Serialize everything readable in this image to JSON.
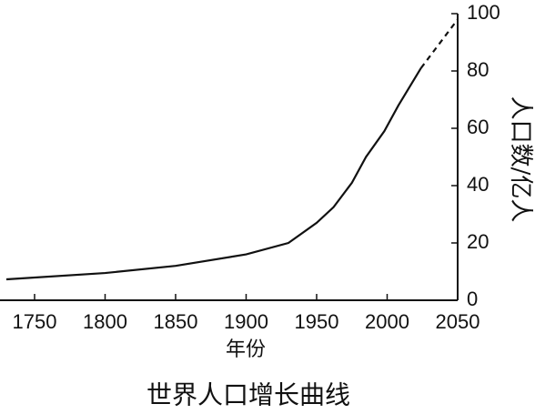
{
  "chart_data": {
    "type": "line",
    "title": "世界人口增长曲线",
    "x_label": "年份",
    "y_label": "人口数/亿人",
    "x": [
      1730,
      1800,
      1850,
      1900,
      1930,
      1950,
      1962,
      1975,
      1985,
      1998,
      2008,
      2024,
      2050
    ],
    "series": [
      {
        "color": "#111111",
        "dash": false,
        "values": [
          7.3,
          9.5,
          12,
          16,
          20,
          27,
          32.5,
          41,
          50,
          59,
          68,
          81,
          null
        ]
      },
      {
        "color": "#111111",
        "dash": true,
        "values": [
          null,
          null,
          null,
          null,
          null,
          null,
          null,
          null,
          null,
          null,
          null,
          81,
          98
        ]
      }
    ],
    "xlim": [
      1730,
      2050
    ],
    "xticks": [
      1750,
      1800,
      1850,
      1900,
      1950,
      2000,
      2050
    ],
    "ylim": [
      0,
      100
    ],
    "yticks": [
      0,
      20,
      40,
      60,
      80,
      100
    ],
    "grid": false
  }
}
